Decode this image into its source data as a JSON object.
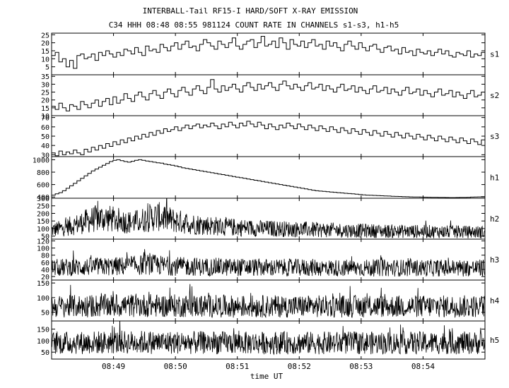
{
  "title_line1": "INTERBALL-Tail RF15-I HARD/SOFT X-RAY EMISSION",
  "title_line2": "C34 HHH 08:48 08:55 981124  COUNT RATE IN CHANNELS s1-s3, h1-h5",
  "chart_data": {
    "type": "line",
    "xlabel": "time UT",
    "x_ticks": [
      "08:49",
      "08:50",
      "08:51",
      "08:52",
      "08:53",
      "08:54"
    ],
    "x_range": [
      "08:48",
      "08:55"
    ],
    "grid": false,
    "panels": [
      {
        "name": "s1",
        "ylim": [
          0,
          26
        ],
        "yticks": [
          5,
          10,
          15,
          20,
          25
        ],
        "step": true,
        "values": [
          12,
          14,
          8,
          10,
          5,
          9,
          4,
          12,
          13,
          10,
          11,
          13,
          9,
          14,
          12,
          15,
          13,
          11,
          14,
          12,
          16,
          15,
          13,
          17,
          14,
          12,
          18,
          15,
          16,
          14,
          19,
          17,
          15,
          18,
          20,
          16,
          19,
          21,
          17,
          18,
          15,
          19,
          22,
          20,
          18,
          16,
          21,
          19,
          17,
          20,
          23,
          18,
          16,
          19,
          21,
          22,
          17,
          20,
          24,
          18,
          19,
          21,
          17,
          23,
          20,
          16,
          22,
          19,
          18,
          21,
          17,
          20,
          22,
          18,
          19,
          16,
          21,
          18,
          20,
          17,
          15,
          19,
          21,
          18,
          16,
          20,
          17,
          15,
          18,
          19,
          16,
          14,
          17,
          18,
          15,
          16,
          13,
          17,
          14,
          15,
          12,
          16,
          14,
          13,
          15,
          12,
          14,
          16,
          13,
          15,
          12,
          11,
          14,
          13,
          12,
          15,
          11,
          13,
          12,
          14
        ]
      },
      {
        "name": "s2",
        "ylim": [
          10,
          36
        ],
        "yticks": [
          10,
          15,
          20,
          25,
          30,
          35
        ],
        "step": true,
        "values": [
          16,
          14,
          18,
          15,
          13,
          17,
          16,
          14,
          19,
          17,
          15,
          18,
          20,
          16,
          19,
          21,
          17,
          22,
          18,
          20,
          24,
          21,
          19,
          23,
          25,
          22,
          20,
          24,
          26,
          23,
          21,
          25,
          27,
          24,
          22,
          26,
          28,
          25,
          23,
          27,
          29,
          26,
          24,
          28,
          33,
          27,
          25,
          29,
          26,
          28,
          30,
          27,
          25,
          29,
          31,
          28,
          26,
          30,
          27,
          29,
          31,
          28,
          26,
          30,
          32,
          29,
          27,
          30,
          28,
          26,
          29,
          31,
          27,
          28,
          30,
          26,
          29,
          27,
          25,
          28,
          30,
          26,
          27,
          29,
          25,
          28,
          26,
          24,
          27,
          29,
          25,
          26,
          28,
          24,
          27,
          25,
          23,
          26,
          28,
          24,
          25,
          27,
          23,
          26,
          24,
          22,
          25,
          27,
          23,
          24,
          26,
          22,
          25,
          23,
          21,
          24,
          26,
          22,
          23,
          25
        ]
      },
      {
        "name": "s3",
        "ylim": [
          28,
          72
        ],
        "yticks": [
          30,
          40,
          50,
          60,
          70
        ],
        "step": true,
        "values": [
          32,
          29,
          34,
          30,
          33,
          31,
          35,
          32,
          30,
          36,
          33,
          38,
          35,
          40,
          37,
          42,
          39,
          44,
          41,
          46,
          43,
          48,
          45,
          50,
          47,
          52,
          49,
          54,
          51,
          56,
          53,
          58,
          55,
          57,
          60,
          56,
          59,
          62,
          58,
          61,
          63,
          59,
          62,
          60,
          64,
          61,
          58,
          63,
          60,
          65,
          62,
          59,
          64,
          61,
          66,
          63,
          60,
          65,
          62,
          58,
          63,
          60,
          57,
          62,
          59,
          64,
          61,
          58,
          63,
          60,
          57,
          62,
          59,
          56,
          61,
          58,
          55,
          60,
          57,
          54,
          59,
          56,
          53,
          58,
          55,
          52,
          57,
          54,
          51,
          56,
          53,
          50,
          55,
          52,
          49,
          54,
          51,
          48,
          53,
          50,
          47,
          52,
          49,
          46,
          51,
          48,
          45,
          50,
          47,
          44,
          49,
          46,
          43,
          48,
          45,
          42,
          47,
          44,
          41,
          46
        ]
      },
      {
        "name": "h1",
        "ylim": [
          380,
          1050
        ],
        "yticks": [
          400,
          600,
          800,
          1000
        ],
        "step": true,
        "values": [
          430,
          450,
          470,
          500,
          540,
          580,
          620,
          660,
          700,
          740,
          780,
          820,
          850,
          880,
          910,
          940,
          970,
          990,
          1000,
          985,
          970,
          960,
          975,
          990,
          1000,
          990,
          980,
          970,
          960,
          950,
          945,
          930,
          920,
          910,
          900,
          885,
          870,
          860,
          850,
          840,
          830,
          820,
          810,
          800,
          790,
          780,
          770,
          760,
          750,
          740,
          730,
          720,
          710,
          700,
          690,
          680,
          670,
          660,
          650,
          640,
          630,
          620,
          610,
          600,
          590,
          580,
          570,
          560,
          550,
          540,
          530,
          520,
          510,
          500,
          495,
          490,
          485,
          480,
          475,
          470,
          465,
          460,
          455,
          450,
          445,
          440,
          435,
          430,
          428,
          425,
          422,
          420,
          418,
          415,
          412,
          410,
          408,
          406,
          404,
          402,
          400,
          399,
          398,
          397,
          396,
          395,
          394,
          393,
          392,
          391,
          390,
          390,
          391,
          392,
          393,
          395,
          398,
          400,
          402,
          405
        ]
      },
      {
        "name": "h2",
        "ylim": [
          30,
          300
        ],
        "yticks": [
          50,
          100,
          150,
          200,
          250,
          300
        ],
        "step": false,
        "noise": true,
        "envelope": [
          90,
          100,
          115,
          130,
          150,
          165,
          170,
          160,
          150,
          140,
          150,
          170,
          180,
          165,
          150,
          140,
          130,
          125,
          120,
          115,
          110,
          108,
          105,
          102,
          100,
          100,
          98,
          96,
          95,
          94,
          92,
          90,
          90,
          88,
          87,
          86,
          85,
          84,
          83,
          82,
          82,
          81,
          80,
          80,
          79,
          78,
          78,
          77,
          77,
          76
        ]
      },
      {
        "name": "h3",
        "ylim": [
          10,
          125
        ],
        "yticks": [
          20,
          40,
          60,
          80,
          100,
          120
        ],
        "step": false,
        "noise": true,
        "envelope": [
          45,
          45,
          46,
          46,
          47,
          47,
          48,
          48,
          49,
          50,
          52,
          54,
          52,
          50,
          49,
          48,
          48,
          47,
          47,
          47,
          46,
          46,
          46,
          46,
          45,
          45,
          45,
          45,
          45,
          45,
          45,
          44,
          44,
          44,
          44,
          44,
          44,
          44,
          44,
          44,
          44,
          44,
          44,
          44,
          44,
          44,
          44,
          44,
          44,
          44
        ]
      },
      {
        "name": "h4",
        "ylim": [
          20,
          160
        ],
        "yticks": [
          50,
          100,
          150
        ],
        "step": false,
        "noise": true,
        "envelope": [
          70,
          70,
          70,
          71,
          71,
          72,
          72,
          72,
          73,
          73,
          73,
          73,
          72,
          72,
          72,
          72,
          71,
          71,
          71,
          71,
          70,
          70,
          70,
          70,
          70,
          70,
          70,
          70,
          70,
          70,
          70,
          70,
          70,
          70,
          70,
          70,
          70,
          70,
          70,
          70,
          70,
          70,
          70,
          70,
          70,
          70,
          70,
          70,
          70,
          70
        ]
      },
      {
        "name": "h5",
        "ylim": [
          20,
          185
        ],
        "yticks": [
          50,
          100,
          150
        ],
        "step": false,
        "noise": true,
        "envelope": [
          90,
          90,
          90,
          91,
          91,
          92,
          92,
          92,
          93,
          93,
          93,
          93,
          92,
          92,
          92,
          92,
          91,
          91,
          91,
          91,
          90,
          90,
          90,
          90,
          90,
          90,
          90,
          90,
          90,
          90,
          90,
          90,
          90,
          90,
          90,
          90,
          90,
          90,
          90,
          90,
          90,
          90,
          90,
          90,
          90,
          90,
          90,
          90,
          90,
          90
        ]
      }
    ]
  }
}
